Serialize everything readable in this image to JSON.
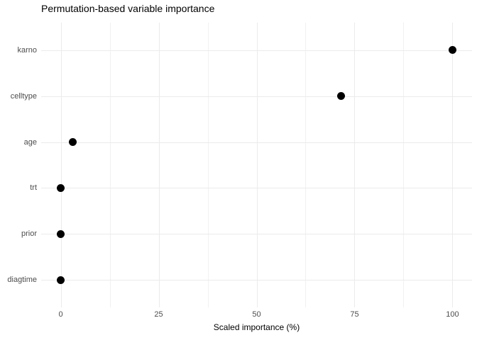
{
  "title": "Permutation-based variable importance",
  "chart_data": {
    "type": "scatter",
    "subtype": "cleveland-dot-plot",
    "orientation": "horizontal",
    "title": "Permutation-based variable importance",
    "xlabel": "Scaled importance (%)",
    "ylabel": "",
    "categories": [
      "karno",
      "celltype",
      "age",
      "trt",
      "prior",
      "diagtime"
    ],
    "values": [
      100,
      71.6,
      3,
      0,
      0,
      0
    ],
    "xlim": [
      -5,
      105
    ],
    "x_major_ticks": [
      0,
      25,
      50,
      75,
      100
    ],
    "x_minor_ticks": [
      12.5,
      37.5,
      62.5,
      87.5
    ],
    "grid": "major-and-minor-vertical, major-horizontal",
    "legend": "none",
    "colors": {
      "background": "#ffffff",
      "point": "#000000",
      "grid_major": "#ebebeb",
      "grid_minor": "#f1f1f1",
      "axis_text": "#4d4d4d",
      "title_text": "#000000",
      "axis_title_text": "#000000"
    }
  }
}
